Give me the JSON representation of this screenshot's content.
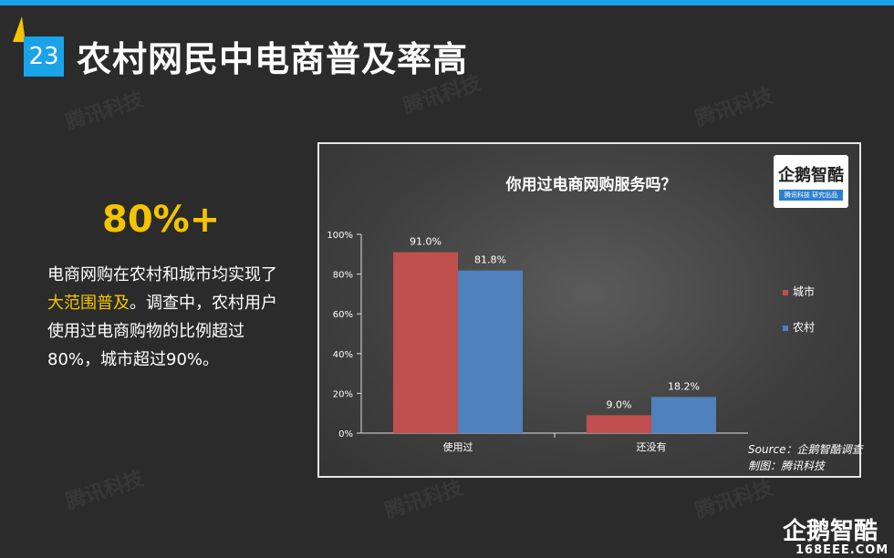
{
  "header": {
    "page_number": "23",
    "title": "农村网民中电商普及率高"
  },
  "watermark": {
    "text": "腾讯科技"
  },
  "left": {
    "stat": "80%+",
    "description_parts": [
      "电商网购在农村和城市均实现了",
      "大范围普及",
      "。调查中，农村用户使用过电商购物的比例超过80%，城市超过90%。"
    ]
  },
  "logo": {
    "main": "企鹅智酷",
    "sub": "腾讯科技 研究出品"
  },
  "chart_data": {
    "type": "bar",
    "title": "你用过电商网购服务吗？",
    "categories": [
      "使用过",
      "还没有"
    ],
    "series": [
      {
        "name": "城市",
        "values": [
          91.0,
          9.0
        ],
        "labels": [
          "91.0%",
          "9.0%"
        ]
      },
      {
        "name": "农村",
        "values": [
          81.8,
          18.2
        ],
        "labels": [
          "81.8%",
          "18.2%"
        ]
      }
    ],
    "ylim": [
      0,
      100
    ],
    "yticks": [
      0,
      20,
      40,
      60,
      80,
      100
    ],
    "ytick_labels": [
      "0%",
      "20%",
      "40%",
      "60%",
      "80%",
      "100%"
    ],
    "legend_position": "right",
    "grid": false
  },
  "source": {
    "line1": "Source：企鹅智酷调查",
    "line2": "制图：腾讯科技"
  },
  "footer": {
    "brand": "企鹅智酷",
    "site": "168EEE.COM"
  },
  "colors": {
    "city": "#c0504d",
    "rural": "#4f81bd",
    "accent": "#f5c400",
    "blue": "#1aa3e8"
  }
}
